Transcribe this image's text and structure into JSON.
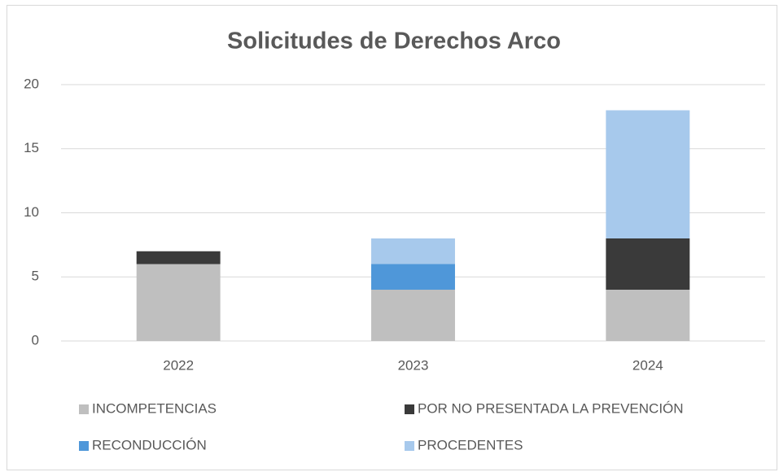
{
  "chart_data": {
    "type": "stacked_bar",
    "title": "Solicitudes de Derechos Arco",
    "categories": [
      "2022",
      "2023",
      "2024"
    ],
    "series": [
      {
        "name": "INCOMPETENCIAS",
        "color": "#bfbfbf",
        "values": [
          6,
          4,
          4
        ]
      },
      {
        "name": "POR NO PRESENTADA LA PREVENCIÓN",
        "color": "#3a3a3a",
        "values": [
          1,
          0,
          4
        ]
      },
      {
        "name": "RECONDUCCIÓN",
        "color": "#4f97d9",
        "values": [
          0,
          2,
          0
        ]
      },
      {
        "name": "PROCEDENTES",
        "color": "#a7c9ec",
        "values": [
          0,
          2,
          10
        ]
      }
    ],
    "ylim": [
      0,
      20
    ],
    "yticks": [
      0,
      5,
      10,
      15,
      20
    ],
    "grid": true,
    "legend": "bottom"
  }
}
